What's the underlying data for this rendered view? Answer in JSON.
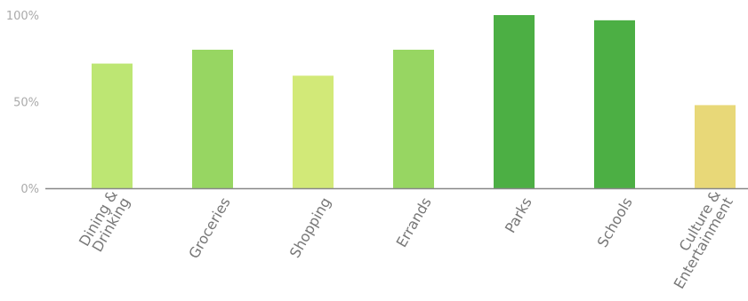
{
  "chart_data": {
    "type": "bar",
    "title": "",
    "xlabel": "",
    "ylabel": "",
    "ylim": [
      0,
      100
    ],
    "y_ticks": [
      {
        "value": 0,
        "label": "0%"
      },
      {
        "value": 50,
        "label": "50%"
      },
      {
        "value": 100,
        "label": "100%"
      }
    ],
    "grid": false,
    "categories": [
      {
        "label_lines": [
          "Dining &",
          "Drinking"
        ],
        "value": 72,
        "color": "#bde673"
      },
      {
        "label_lines": [
          "Groceries"
        ],
        "value": 80,
        "color": "#97d662"
      },
      {
        "label_lines": [
          "Shopping"
        ],
        "value": 65,
        "color": "#d2e978"
      },
      {
        "label_lines": [
          "Errands"
        ],
        "value": 80,
        "color": "#97d662"
      },
      {
        "label_lines": [
          "Parks"
        ],
        "value": 100,
        "color": "#4caf44"
      },
      {
        "label_lines": [
          "Schools"
        ],
        "value": 97,
        "color": "#4caf44"
      },
      {
        "label_lines": [
          "Culture &",
          "Entertainment"
        ],
        "value": 48,
        "color": "#e8d878"
      }
    ]
  }
}
